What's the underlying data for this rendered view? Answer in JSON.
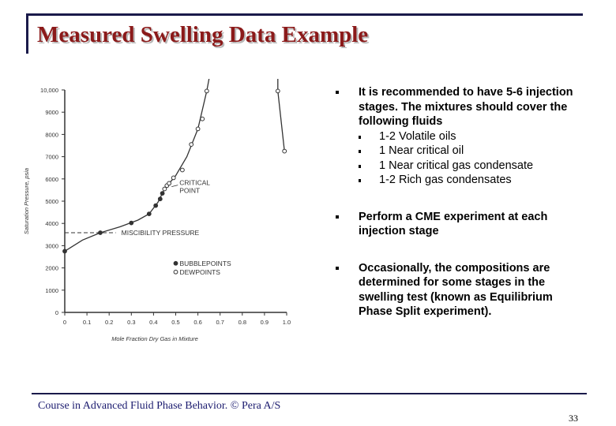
{
  "slide": {
    "title": "Measured Swelling Data Example",
    "footer": "Course in Advanced Fluid Phase Behavior. © Pera A/S",
    "page_number": "33"
  },
  "bullets": {
    "b1": {
      "text": "It is recommended to have 5-6 injection stages. The mixtures should cover the following fluids",
      "sub": [
        "1-2 Volatile oils",
        "1 Near critical oil",
        "1 Near critical gas condensate",
        "1-2 Rich gas condensates"
      ]
    },
    "b2": {
      "text": "Perform a CME experiment at each injection stage"
    },
    "b3": {
      "text": "Occasionally, the compositions are determined for some stages in the swelling test (known as Equilibrium Phase Split experiment)."
    }
  },
  "chart_data": {
    "type": "scatter",
    "xlabel": "Mole Fraction Dry Gas in Mixture",
    "ylabel": "Saturation Pressure, psia",
    "xlim": [
      0,
      1.0
    ],
    "ylim": [
      0,
      10000
    ],
    "x_ticks": [
      "0",
      "0.1",
      "0.2",
      "0.3",
      "0.4",
      "0.5",
      "0.6",
      "0.7",
      "0.8",
      "0.9",
      "1.0"
    ],
    "y_ticks": [
      "0",
      "1000",
      "2000",
      "3000",
      "4000",
      "5000",
      "6000",
      "7000",
      "8000",
      "9000",
      "10,000"
    ],
    "series": [
      {
        "name": "BUBBLEPOINTS",
        "marker": "filled",
        "points": [
          [
            0.0,
            2750
          ],
          [
            0.16,
            3580
          ],
          [
            0.3,
            4020
          ],
          [
            0.38,
            4430
          ],
          [
            0.41,
            4800
          ],
          [
            0.43,
            5100
          ],
          [
            0.44,
            5350
          ]
        ]
      },
      {
        "name": "DEWPOINTS",
        "marker": "open",
        "points": [
          [
            0.45,
            5550
          ],
          [
            0.46,
            5700
          ],
          [
            0.47,
            5800
          ],
          [
            0.49,
            6050
          ],
          [
            0.53,
            6400
          ],
          [
            0.57,
            7550
          ],
          [
            0.6,
            8250
          ],
          [
            0.62,
            8700
          ],
          [
            0.64,
            9950
          ],
          [
            0.96,
            9950
          ],
          [
            0.99,
            7250
          ]
        ]
      }
    ],
    "curves": [
      {
        "name": "phase-envelope-left",
        "points": [
          [
            0.0,
            2750
          ],
          [
            0.08,
            3250
          ],
          [
            0.16,
            3580
          ],
          [
            0.25,
            3850
          ],
          [
            0.33,
            4150
          ],
          [
            0.38,
            4430
          ],
          [
            0.42,
            4950
          ],
          [
            0.45,
            5550
          ],
          [
            0.5,
            6150
          ],
          [
            0.55,
            7000
          ],
          [
            0.6,
            8250
          ],
          [
            0.64,
            9950
          ],
          [
            0.65,
            10500
          ]
        ]
      },
      {
        "name": "phase-envelope-right",
        "points": [
          [
            0.96,
            10500
          ],
          [
            0.96,
            9950
          ],
          [
            0.99,
            7250
          ]
        ]
      }
    ],
    "annotations": {
      "critical_point": "CRITICAL POINT",
      "critical_value": [
        0.46,
        5650
      ],
      "miscibility_pressure": "MISCIBILITY PRESSURE",
      "miscibility_value": 3580
    },
    "legend": {
      "position": "center-right",
      "entries": [
        "BUBBLEPOINTS",
        "DEWPOINTS"
      ]
    }
  }
}
